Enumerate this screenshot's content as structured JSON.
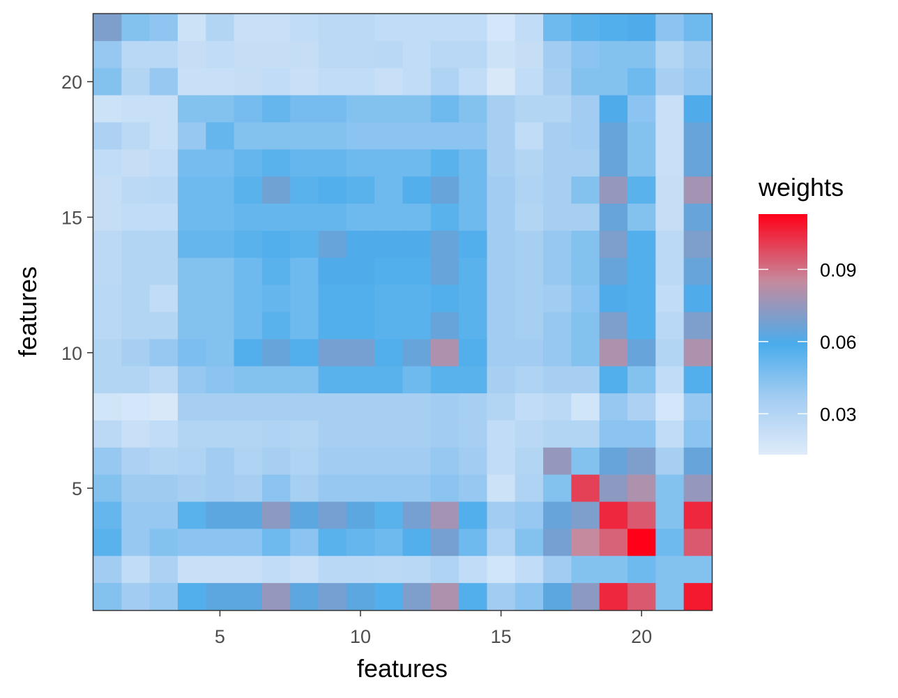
{
  "chart_data": {
    "type": "heatmap",
    "xlabel": "features",
    "ylabel": "features",
    "x_ticks": [
      5,
      10,
      15,
      20
    ],
    "y_ticks": [
      5,
      10,
      15,
      20
    ],
    "xlim": [
      0.5,
      22.5
    ],
    "ylim": [
      0.5,
      22.5
    ],
    "n": 22,
    "legend": {
      "title": "weights",
      "placement": "right",
      "breaks": [
        0.03,
        0.06,
        0.09
      ],
      "range": [
        0.013,
        0.113
      ]
    },
    "colors": {
      "low": "#deebfa",
      "mid_low": "#9fcbf1",
      "mid": "#4aacec",
      "mid_high": "#c58a9e",
      "high": "#ff0018"
    },
    "values": [
      [
        0.07,
        0.045,
        0.042,
        0.02,
        0.03,
        0.022,
        0.022,
        0.025,
        0.027,
        0.027,
        0.025,
        0.025,
        0.025,
        0.025,
        0.017,
        0.025,
        0.05,
        0.055,
        0.057,
        0.06,
        0.043,
        0.05
      ],
      [
        0.04,
        0.028,
        0.028,
        0.023,
        0.025,
        0.023,
        0.023,
        0.023,
        0.027,
        0.027,
        0.028,
        0.025,
        0.028,
        0.028,
        0.02,
        0.023,
        0.037,
        0.043,
        0.045,
        0.045,
        0.03,
        0.038
      ],
      [
        0.045,
        0.03,
        0.04,
        0.022,
        0.022,
        0.023,
        0.025,
        0.022,
        0.025,
        0.025,
        0.022,
        0.025,
        0.032,
        0.025,
        0.015,
        0.025,
        0.035,
        0.045,
        0.045,
        0.05,
        0.035,
        0.04
      ],
      [
        0.02,
        0.022,
        0.022,
        0.045,
        0.045,
        0.048,
        0.052,
        0.048,
        0.048,
        0.045,
        0.045,
        0.045,
        0.05,
        0.045,
        0.035,
        0.03,
        0.03,
        0.037,
        0.06,
        0.043,
        0.022,
        0.06
      ],
      [
        0.033,
        0.027,
        0.022,
        0.04,
        0.052,
        0.045,
        0.045,
        0.045,
        0.045,
        0.043,
        0.043,
        0.043,
        0.043,
        0.043,
        0.035,
        0.025,
        0.035,
        0.037,
        0.065,
        0.045,
        0.022,
        0.065
      ],
      [
        0.025,
        0.023,
        0.025,
        0.048,
        0.048,
        0.052,
        0.055,
        0.052,
        0.052,
        0.05,
        0.05,
        0.05,
        0.055,
        0.05,
        0.035,
        0.03,
        0.035,
        0.035,
        0.065,
        0.045,
        0.022,
        0.065
      ],
      [
        0.023,
        0.027,
        0.028,
        0.05,
        0.05,
        0.055,
        0.067,
        0.055,
        0.057,
        0.055,
        0.05,
        0.057,
        0.065,
        0.05,
        0.037,
        0.032,
        0.035,
        0.045,
        0.075,
        0.055,
        0.023,
        0.078
      ],
      [
        0.023,
        0.025,
        0.025,
        0.05,
        0.05,
        0.052,
        0.052,
        0.052,
        0.052,
        0.05,
        0.05,
        0.05,
        0.055,
        0.05,
        0.037,
        0.03,
        0.035,
        0.035,
        0.065,
        0.045,
        0.023,
        0.065
      ],
      [
        0.027,
        0.03,
        0.03,
        0.052,
        0.052,
        0.055,
        0.057,
        0.055,
        0.065,
        0.06,
        0.06,
        0.06,
        0.065,
        0.057,
        0.037,
        0.035,
        0.04,
        0.045,
        0.07,
        0.057,
        0.027,
        0.07
      ],
      [
        0.027,
        0.03,
        0.03,
        0.045,
        0.045,
        0.05,
        0.055,
        0.05,
        0.06,
        0.06,
        0.057,
        0.057,
        0.065,
        0.055,
        0.037,
        0.035,
        0.04,
        0.045,
        0.065,
        0.057,
        0.027,
        0.065
      ],
      [
        0.028,
        0.03,
        0.025,
        0.045,
        0.045,
        0.05,
        0.052,
        0.05,
        0.057,
        0.057,
        0.055,
        0.055,
        0.057,
        0.055,
        0.037,
        0.035,
        0.037,
        0.043,
        0.06,
        0.057,
        0.025,
        0.06
      ],
      [
        0.028,
        0.03,
        0.03,
        0.045,
        0.045,
        0.05,
        0.055,
        0.05,
        0.057,
        0.057,
        0.055,
        0.055,
        0.065,
        0.055,
        0.037,
        0.035,
        0.04,
        0.045,
        0.07,
        0.057,
        0.028,
        0.07
      ],
      [
        0.03,
        0.035,
        0.04,
        0.047,
        0.045,
        0.057,
        0.065,
        0.057,
        0.068,
        0.068,
        0.057,
        0.065,
        0.08,
        0.057,
        0.037,
        0.037,
        0.04,
        0.045,
        0.08,
        0.065,
        0.03,
        0.08
      ],
      [
        0.03,
        0.03,
        0.027,
        0.04,
        0.043,
        0.045,
        0.045,
        0.045,
        0.055,
        0.055,
        0.055,
        0.05,
        0.055,
        0.055,
        0.035,
        0.032,
        0.035,
        0.035,
        0.057,
        0.045,
        0.025,
        0.057
      ],
      [
        0.018,
        0.017,
        0.015,
        0.035,
        0.035,
        0.035,
        0.035,
        0.035,
        0.035,
        0.035,
        0.035,
        0.035,
        0.037,
        0.035,
        0.03,
        0.025,
        0.027,
        0.018,
        0.04,
        0.033,
        0.017,
        0.04
      ],
      [
        0.027,
        0.022,
        0.025,
        0.03,
        0.03,
        0.03,
        0.032,
        0.03,
        0.035,
        0.035,
        0.035,
        0.035,
        0.037,
        0.035,
        0.025,
        0.028,
        0.03,
        0.03,
        0.043,
        0.043,
        0.025,
        0.043
      ],
      [
        0.04,
        0.033,
        0.03,
        0.032,
        0.037,
        0.032,
        0.035,
        0.032,
        0.037,
        0.037,
        0.037,
        0.037,
        0.04,
        0.037,
        0.025,
        0.03,
        0.075,
        0.045,
        0.065,
        0.07,
        0.035,
        0.065
      ],
      [
        0.045,
        0.038,
        0.038,
        0.035,
        0.037,
        0.035,
        0.043,
        0.035,
        0.04,
        0.04,
        0.04,
        0.04,
        0.043,
        0.04,
        0.02,
        0.032,
        0.045,
        0.1,
        0.073,
        0.08,
        0.045,
        0.075
      ],
      [
        0.052,
        0.04,
        0.04,
        0.055,
        0.063,
        0.063,
        0.073,
        0.063,
        0.068,
        0.063,
        0.055,
        0.068,
        0.078,
        0.057,
        0.037,
        0.04,
        0.065,
        0.07,
        0.105,
        0.095,
        0.045,
        0.105
      ],
      [
        0.055,
        0.04,
        0.045,
        0.043,
        0.043,
        0.043,
        0.05,
        0.043,
        0.055,
        0.052,
        0.05,
        0.057,
        0.068,
        0.05,
        0.032,
        0.045,
        0.068,
        0.085,
        0.093,
        0.113,
        0.05,
        0.095
      ],
      [
        0.037,
        0.025,
        0.033,
        0.022,
        0.022,
        0.022,
        0.025,
        0.022,
        0.028,
        0.028,
        0.027,
        0.028,
        0.032,
        0.025,
        0.018,
        0.025,
        0.037,
        0.045,
        0.045,
        0.05,
        0.045,
        0.045
      ],
      [
        0.045,
        0.037,
        0.04,
        0.057,
        0.063,
        0.063,
        0.075,
        0.063,
        0.068,
        0.063,
        0.057,
        0.07,
        0.08,
        0.057,
        0.037,
        0.043,
        0.063,
        0.073,
        0.105,
        0.095,
        0.045,
        0.108
      ]
    ]
  }
}
